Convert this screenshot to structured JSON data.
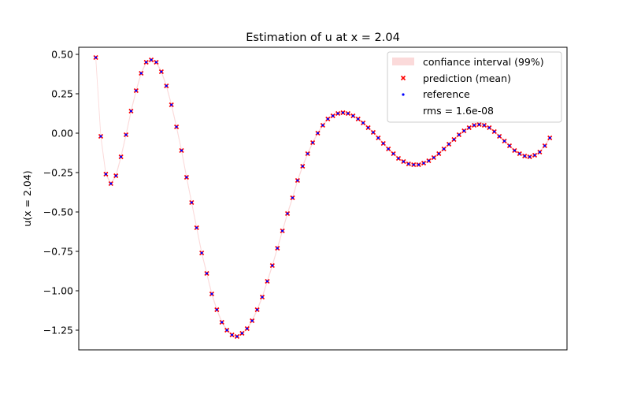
{
  "chart_data": {
    "type": "scatter",
    "title": "Estimation of u at x = 2.04",
    "xlabel": "",
    "ylabel": "u(x = 2.04)",
    "ylim": [
      -1.375,
      0.545
    ],
    "xlim": [
      -3.37,
      93.4
    ],
    "yticks": [
      {
        "value": 0.5,
        "label": "0.50"
      },
      {
        "value": 0.25,
        "label": "0.25"
      },
      {
        "value": 0.0,
        "label": "0.00"
      },
      {
        "value": -0.25,
        "label": "−0.25"
      },
      {
        "value": -0.5,
        "label": "−0.50"
      },
      {
        "value": -0.75,
        "label": "−0.75"
      },
      {
        "value": -1.0,
        "label": "−1.00"
      },
      {
        "value": -1.25,
        "label": "−1.25"
      }
    ],
    "grid": false,
    "legend_position": "top-right",
    "legend": {
      "ci_label": "confiance interval (99%)",
      "prediction_label": "prediction (mean)",
      "reference_label": "reference",
      "rms_label": "rms = 1.6e-08"
    },
    "colors": {
      "prediction": "#ff0000",
      "reference": "#0000ff",
      "confidence": "#fbdada"
    },
    "x": [
      0,
      1,
      2,
      3,
      4,
      5,
      6,
      7,
      8,
      9,
      10,
      11,
      12,
      13,
      14,
      15,
      16,
      17,
      18,
      19,
      20,
      21,
      22,
      23,
      24,
      25,
      26,
      27,
      28,
      29,
      30,
      31,
      32,
      33,
      34,
      35,
      36,
      37,
      38,
      39,
      40,
      41,
      42,
      43,
      44,
      45,
      46,
      47,
      48,
      49,
      50,
      51,
      52,
      53,
      54,
      55,
      56,
      57,
      58,
      59,
      60,
      61,
      62,
      63,
      64,
      65,
      66,
      67,
      68,
      69,
      70,
      71,
      72,
      73,
      74,
      75,
      76,
      77,
      78,
      79,
      80,
      81,
      82,
      83,
      84,
      85,
      86,
      87,
      88,
      89,
      90
    ],
    "prediction": [
      0.48,
      -0.02,
      -0.26,
      -0.32,
      -0.27,
      -0.15,
      -0.01,
      0.14,
      0.27,
      0.38,
      0.45,
      0.465,
      0.45,
      0.39,
      0.3,
      0.18,
      0.04,
      -0.11,
      -0.28,
      -0.44,
      -0.6,
      -0.76,
      -0.89,
      -1.02,
      -1.12,
      -1.2,
      -1.25,
      -1.28,
      -1.29,
      -1.27,
      -1.24,
      -1.19,
      -1.12,
      -1.04,
      -0.94,
      -0.84,
      -0.73,
      -0.62,
      -0.51,
      -0.41,
      -0.3,
      -0.21,
      -0.13,
      -0.06,
      0.0,
      0.05,
      0.09,
      0.11,
      0.125,
      0.13,
      0.125,
      0.11,
      0.09,
      0.065,
      0.035,
      0.005,
      -0.03,
      -0.065,
      -0.1,
      -0.13,
      -0.16,
      -0.18,
      -0.195,
      -0.2,
      -0.2,
      -0.19,
      -0.175,
      -0.155,
      -0.13,
      -0.1,
      -0.07,
      -0.04,
      -0.01,
      0.015,
      0.035,
      0.05,
      0.055,
      0.05,
      0.035,
      0.01,
      -0.02,
      -0.05,
      -0.08,
      -0.11,
      -0.13,
      -0.145,
      -0.15,
      -0.14,
      -0.12,
      -0.08,
      -0.03
    ],
    "reference": [
      0.48,
      -0.02,
      -0.26,
      -0.32,
      -0.27,
      -0.15,
      -0.01,
      0.14,
      0.27,
      0.38,
      0.45,
      0.465,
      0.45,
      0.39,
      0.3,
      0.18,
      0.04,
      -0.11,
      -0.28,
      -0.44,
      -0.6,
      -0.76,
      -0.89,
      -1.02,
      -1.12,
      -1.2,
      -1.25,
      -1.28,
      -1.29,
      -1.27,
      -1.24,
      -1.19,
      -1.12,
      -1.04,
      -0.94,
      -0.84,
      -0.73,
      -0.62,
      -0.51,
      -0.41,
      -0.3,
      -0.21,
      -0.13,
      -0.06,
      0.0,
      0.05,
      0.09,
      0.11,
      0.125,
      0.13,
      0.125,
      0.11,
      0.09,
      0.065,
      0.035,
      0.005,
      -0.03,
      -0.065,
      -0.1,
      -0.13,
      -0.16,
      -0.18,
      -0.195,
      -0.2,
      -0.2,
      -0.19,
      -0.175,
      -0.155,
      -0.13,
      -0.1,
      -0.07,
      -0.04,
      -0.01,
      0.015,
      0.035,
      0.05,
      0.055,
      0.05,
      0.035,
      0.01,
      -0.02,
      -0.05,
      -0.08,
      -0.11,
      -0.13,
      -0.145,
      -0.15,
      -0.14,
      -0.12,
      -0.08,
      -0.03
    ]
  }
}
